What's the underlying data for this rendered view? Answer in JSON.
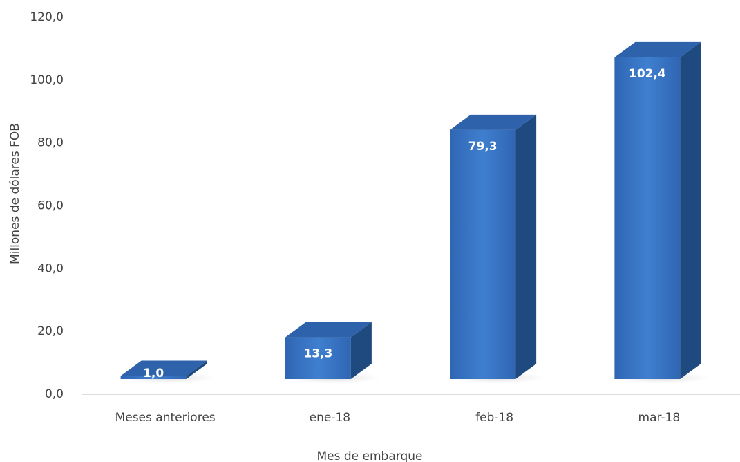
{
  "chart_data": {
    "type": "bar3d",
    "x_label": "Mes de embarque",
    "y_label": "Millones de dólares FOB",
    "categories": [
      "Meses anteriores",
      "ene-18",
      "feb-18",
      "mar-18"
    ],
    "values": [
      1.0,
      13.3,
      79.3,
      102.4
    ],
    "value_labels": [
      "1,0",
      "13,3",
      "79,3",
      "102,4"
    ],
    "color": "#3a76c4",
    "ylim": [
      0,
      120
    ],
    "yticks": [
      {
        "value": 0,
        "label": "0,0"
      },
      {
        "value": 20,
        "label": "20,0"
      },
      {
        "value": 40,
        "label": "40,0"
      },
      {
        "value": 60,
        "label": "60,0"
      },
      {
        "value": 80,
        "label": "80,0"
      },
      {
        "value": 100,
        "label": "100,0"
      },
      {
        "value": 120,
        "label": "120,0"
      }
    ]
  }
}
